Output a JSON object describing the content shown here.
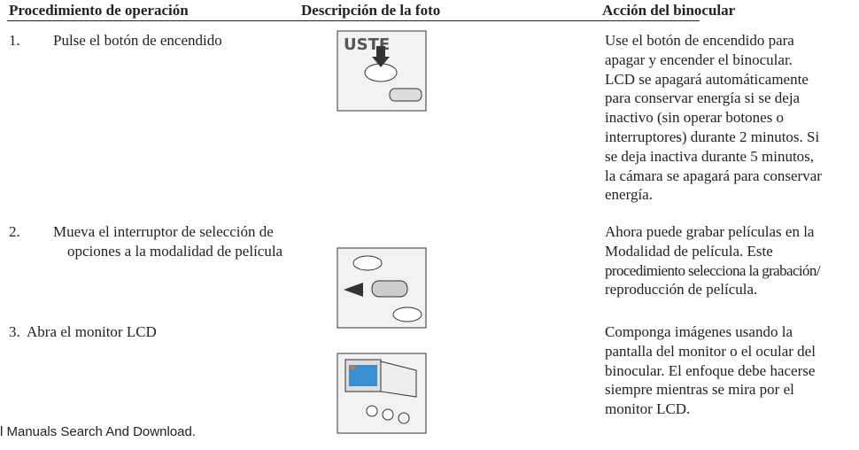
{
  "header": [
    "Procedimiento de operación",
    "Descripción de la foto",
    "Acción del binocular"
  ],
  "rows": [
    {
      "number": "1.",
      "operation": [
        "Pulse el botón de encendido"
      ],
      "action": [
        "Use el botón de encendido para",
        "apagar y encender el binocular.",
        "LCD se apagará automáticamente",
        "para conservar energía si se deja",
        "inactivo (sin operar botones o",
        "interruptores) durante 2 minutos. Si",
        "se deja inactiva durante 5 minutos,",
        "la cámara se apagará para conservar",
        "energía."
      ]
    },
    {
      "number": "2.",
      "operation": [
        "Mueva el interruptor de selección de",
        "opciones a la modalidad de película"
      ],
      "action": [
        "Ahora puede grabar películas en la",
        "Modalidad de película. Este",
        "procedimiento selecciona la grabación/",
        "reproducción de película."
      ]
    },
    {
      "number": "3.",
      "operation": [
        "Abra el monitor LCD"
      ],
      "action": [
        "Componga imágenes usando la",
        "pantalla del monitor o el ocular del",
        "binocular. El enfoque debe hacerse",
        "siempre mientras se mira por el",
        "monitor LCD."
      ]
    }
  ],
  "footer": "l Manuals Search And Download."
}
